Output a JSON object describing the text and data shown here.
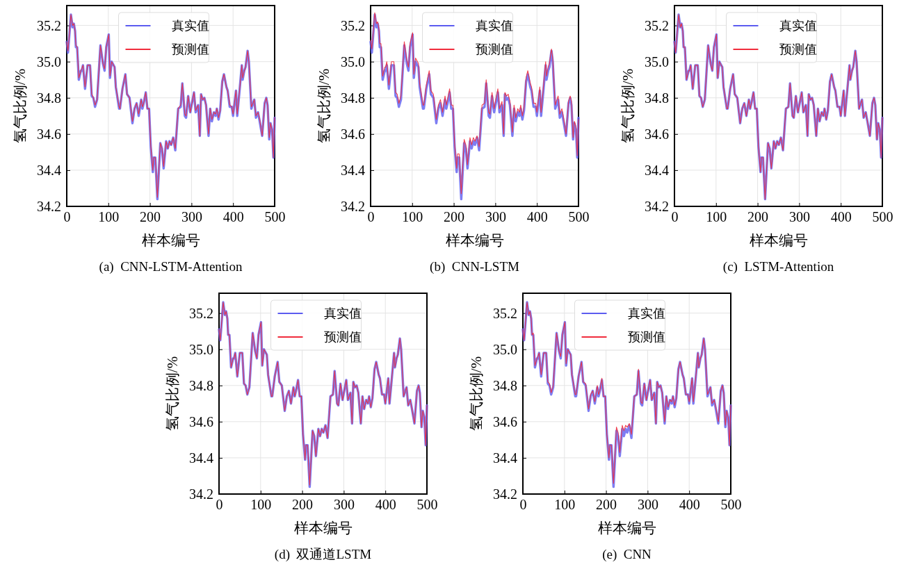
{
  "chart_data": [
    {
      "type": "line",
      "title": "(a)  CNN-LSTM-Attention",
      "xlabel": "样本编号",
      "ylabel": "氢气比例/%",
      "xlim": [
        0,
        500
      ],
      "xticks": [
        0,
        100,
        200,
        300,
        400,
        500
      ],
      "ylim": [
        34.2,
        35.31
      ],
      "yticks": [
        {
          "value": 34.2,
          "label": "34.2"
        },
        {
          "value": 34.4,
          "label": "34.4"
        },
        {
          "value": 34.6,
          "label": "34.6"
        },
        {
          "value": 34.8,
          "label": "34.8"
        },
        {
          "value": 35.0,
          "label": "35.0"
        },
        {
          "value": 35.2,
          "label": "35.2"
        }
      ],
      "grid": true,
      "legend": "top",
      "x": [
        0,
        3,
        10,
        14,
        17,
        20,
        22,
        25,
        29,
        34,
        36,
        39,
        44,
        50,
        56,
        60,
        64,
        68,
        73,
        81,
        87,
        91,
        95,
        101,
        104,
        108,
        115,
        118,
        126,
        128,
        134,
        141,
        145,
        151,
        158,
        163,
        168,
        173,
        179,
        182,
        185,
        190,
        194,
        198,
        202,
        207,
        209,
        213,
        218,
        225,
        229,
        233,
        239,
        243,
        247,
        251,
        256,
        261,
        268,
        274,
        278,
        284,
        287,
        292,
        297,
        306,
        310,
        316,
        320,
        323,
        327,
        331,
        335,
        341,
        345,
        349,
        354,
        358,
        361,
        365,
        369,
        374,
        378,
        384,
        387,
        392,
        397,
        400,
        407,
        410,
        416,
        421,
        423,
        427,
        430,
        435,
        438,
        444,
        448,
        451,
        455,
        460,
        464,
        470,
        476,
        480,
        483,
        487,
        490,
        494,
        497,
        500
      ],
      "series": [
        {
          "name": "真实值",
          "color": "#5c5cf0",
          "values": [
            35.11,
            35.05,
            35.26,
            35.19,
            35.21,
            35.17,
            35.08,
            35.08,
            34.9,
            34.95,
            34.95,
            34.98,
            34.85,
            34.98,
            34.98,
            34.81,
            34.8,
            34.75,
            34.79,
            35.09,
            34.99,
            34.95,
            35.08,
            35.15,
            34.91,
            35.0,
            34.97,
            34.86,
            34.74,
            34.74,
            34.85,
            34.93,
            34.82,
            34.8,
            34.66,
            34.74,
            34.77,
            34.7,
            34.79,
            34.74,
            34.77,
            34.83,
            34.74,
            34.74,
            34.53,
            34.39,
            34.47,
            34.47,
            34.24,
            34.55,
            34.52,
            34.41,
            34.56,
            34.52,
            34.56,
            34.54,
            34.58,
            34.51,
            34.74,
            34.75,
            34.88,
            34.7,
            34.69,
            34.81,
            34.72,
            34.83,
            34.72,
            34.76,
            34.59,
            34.82,
            34.79,
            34.8,
            34.76,
            34.59,
            34.74,
            34.67,
            34.72,
            34.7,
            34.74,
            34.68,
            34.73,
            34.89,
            34.93,
            34.86,
            34.84,
            34.75,
            34.75,
            34.7,
            34.84,
            34.7,
            34.85,
            34.98,
            34.9,
            34.95,
            34.97,
            35.06,
            35.0,
            34.74,
            34.77,
            34.79,
            34.69,
            34.72,
            34.67,
            34.59,
            34.77,
            34.8,
            34.76,
            34.57,
            34.66,
            34.62,
            34.47,
            34.69
          ]
        },
        {
          "name": "预测值",
          "color": "#f02c3c",
          "values": [
            35.11,
            35.06,
            35.26,
            35.2,
            35.21,
            35.17,
            35.09,
            35.08,
            34.91,
            34.95,
            34.96,
            34.98,
            34.86,
            34.98,
            34.98,
            34.82,
            34.8,
            34.76,
            34.79,
            35.09,
            34.99,
            34.96,
            35.08,
            35.15,
            34.92,
            35.0,
            34.97,
            34.86,
            34.75,
            34.74,
            34.85,
            34.93,
            34.82,
            34.8,
            34.67,
            34.74,
            34.77,
            34.71,
            34.79,
            34.75,
            34.77,
            34.83,
            34.74,
            34.74,
            34.54,
            34.4,
            34.47,
            34.47,
            34.25,
            34.55,
            34.52,
            34.42,
            34.56,
            34.52,
            34.56,
            34.54,
            34.58,
            34.52,
            34.74,
            34.76,
            34.88,
            34.71,
            34.7,
            34.81,
            34.72,
            34.83,
            34.73,
            34.76,
            34.59,
            34.82,
            34.79,
            34.8,
            34.76,
            34.6,
            34.74,
            34.68,
            34.72,
            34.71,
            34.74,
            34.69,
            34.73,
            34.89,
            34.93,
            34.86,
            34.84,
            34.76,
            34.75,
            34.71,
            34.84,
            34.71,
            34.85,
            34.98,
            34.91,
            34.95,
            34.97,
            35.06,
            35.0,
            34.75,
            34.77,
            34.79,
            34.7,
            34.72,
            34.68,
            34.59,
            34.77,
            34.8,
            34.76,
            34.58,
            34.66,
            34.62,
            34.47,
            34.69
          ]
        }
      ]
    },
    {
      "type": "line",
      "title": "(b)  CNN-LSTM",
      "xlabel": "样本编号",
      "ylabel": "氢气比例/%",
      "xlim": [
        0,
        500
      ],
      "xticks": [
        0,
        100,
        200,
        300,
        400,
        500
      ],
      "ylim": [
        34.2,
        35.31
      ],
      "yticks": [
        {
          "value": 34.2,
          "label": "34.2"
        },
        {
          "value": 34.4,
          "label": "34.4"
        },
        {
          "value": 34.6,
          "label": "34.6"
        },
        {
          "value": 34.8,
          "label": "34.8"
        },
        {
          "value": 35.0,
          "label": "35.0"
        },
        {
          "value": 35.2,
          "label": "35.2"
        }
      ],
      "grid": true,
      "legend": "top",
      "x": [
        0,
        3,
        10,
        14,
        17,
        20,
        22,
        25,
        29,
        34,
        36,
        39,
        44,
        50,
        56,
        60,
        64,
        68,
        73,
        81,
        87,
        91,
        95,
        101,
        104,
        108,
        115,
        118,
        126,
        128,
        134,
        141,
        145,
        151,
        158,
        163,
        168,
        173,
        179,
        182,
        185,
        190,
        194,
        198,
        202,
        207,
        209,
        213,
        218,
        225,
        229,
        233,
        239,
        243,
        247,
        251,
        256,
        261,
        268,
        274,
        278,
        284,
        287,
        292,
        297,
        306,
        310,
        316,
        320,
        323,
        327,
        331,
        335,
        341,
        345,
        349,
        354,
        358,
        361,
        365,
        369,
        374,
        378,
        384,
        387,
        392,
        397,
        400,
        407,
        410,
        416,
        421,
        423,
        427,
        430,
        435,
        438,
        444,
        448,
        451,
        455,
        460,
        464,
        470,
        476,
        480,
        483,
        487,
        490,
        494,
        497,
        500
      ],
      "series": [
        {
          "name": "真实值",
          "color": "#5c5cf0",
          "values": [
            35.11,
            35.05,
            35.26,
            35.19,
            35.21,
            35.17,
            35.08,
            35.08,
            34.9,
            34.95,
            34.95,
            34.98,
            34.85,
            34.98,
            34.98,
            34.81,
            34.8,
            34.75,
            34.79,
            35.09,
            34.99,
            34.95,
            35.08,
            35.15,
            34.91,
            35.0,
            34.97,
            34.86,
            34.74,
            34.74,
            34.85,
            34.93,
            34.82,
            34.8,
            34.66,
            34.74,
            34.77,
            34.7,
            34.79,
            34.74,
            34.77,
            34.83,
            34.74,
            34.74,
            34.53,
            34.39,
            34.47,
            34.47,
            34.24,
            34.55,
            34.52,
            34.41,
            34.56,
            34.52,
            34.56,
            34.54,
            34.58,
            34.51,
            34.74,
            34.75,
            34.88,
            34.7,
            34.69,
            34.81,
            34.72,
            34.83,
            34.72,
            34.76,
            34.59,
            34.82,
            34.79,
            34.8,
            34.76,
            34.59,
            34.74,
            34.67,
            34.72,
            34.7,
            34.74,
            34.68,
            34.73,
            34.89,
            34.93,
            34.86,
            34.84,
            34.75,
            34.75,
            34.7,
            34.84,
            34.7,
            34.85,
            34.98,
            34.9,
            34.95,
            34.97,
            35.06,
            35.0,
            34.74,
            34.77,
            34.79,
            34.69,
            34.72,
            34.67,
            34.59,
            34.77,
            34.8,
            34.76,
            34.57,
            34.66,
            34.62,
            34.47,
            34.69
          ]
        },
        {
          "name": "预测值",
          "color": "#f02c3c",
          "values": [
            35.12,
            35.07,
            35.27,
            35.21,
            35.22,
            35.18,
            35.1,
            35.1,
            34.92,
            34.97,
            34.97,
            35.0,
            34.87,
            35.0,
            35.0,
            34.83,
            34.82,
            34.77,
            34.81,
            35.11,
            35.01,
            34.97,
            35.1,
            35.16,
            34.93,
            35.02,
            34.99,
            34.88,
            34.76,
            34.76,
            34.87,
            34.95,
            34.84,
            34.82,
            34.68,
            34.76,
            34.79,
            34.72,
            34.81,
            34.76,
            34.79,
            34.85,
            34.76,
            34.76,
            34.55,
            34.41,
            34.49,
            34.49,
            34.27,
            34.57,
            34.54,
            34.43,
            34.58,
            34.54,
            34.58,
            34.56,
            34.59,
            34.53,
            34.76,
            34.77,
            34.9,
            34.72,
            34.71,
            34.83,
            34.74,
            34.85,
            34.74,
            34.78,
            34.6,
            34.83,
            34.81,
            34.82,
            34.78,
            34.61,
            34.76,
            34.69,
            34.74,
            34.72,
            34.76,
            34.7,
            34.75,
            34.91,
            34.95,
            34.88,
            34.86,
            34.77,
            34.77,
            34.72,
            34.86,
            34.72,
            34.87,
            35.0,
            34.92,
            34.97,
            34.99,
            35.07,
            35.02,
            34.76,
            34.79,
            34.81,
            34.71,
            34.74,
            34.69,
            34.6,
            34.78,
            34.81,
            34.78,
            34.58,
            34.67,
            34.64,
            34.48,
            34.68
          ]
        }
      ]
    },
    {
      "type": "line",
      "title": "(c)  LSTM-Attention",
      "xlabel": "样本编号",
      "ylabel": "氢气比例/%",
      "xlim": [
        0,
        500
      ],
      "xticks": [
        0,
        100,
        200,
        300,
        400,
        500
      ],
      "ylim": [
        34.2,
        35.31
      ],
      "yticks": [
        {
          "value": 34.2,
          "label": "34.2"
        },
        {
          "value": 34.4,
          "label": "34.4"
        },
        {
          "value": 34.6,
          "label": "34.6"
        },
        {
          "value": 34.8,
          "label": "34.8"
        },
        {
          "value": 35.0,
          "label": "35.0"
        },
        {
          "value": 35.2,
          "label": "35.2"
        }
      ],
      "grid": true,
      "legend": "top",
      "x": [
        0,
        3,
        10,
        14,
        17,
        20,
        22,
        25,
        29,
        34,
        36,
        39,
        44,
        50,
        56,
        60,
        64,
        68,
        73,
        81,
        87,
        91,
        95,
        101,
        104,
        108,
        115,
        118,
        126,
        128,
        134,
        141,
        145,
        151,
        158,
        163,
        168,
        173,
        179,
        182,
        185,
        190,
        194,
        198,
        202,
        207,
        209,
        213,
        218,
        225,
        229,
        233,
        239,
        243,
        247,
        251,
        256,
        261,
        268,
        274,
        278,
        284,
        287,
        292,
        297,
        306,
        310,
        316,
        320,
        323,
        327,
        331,
        335,
        341,
        345,
        349,
        354,
        358,
        361,
        365,
        369,
        374,
        378,
        384,
        387,
        392,
        397,
        400,
        407,
        410,
        416,
        421,
        423,
        427,
        430,
        435,
        438,
        444,
        448,
        451,
        455,
        460,
        464,
        470,
        476,
        480,
        483,
        487,
        490,
        494,
        497,
        500
      ],
      "series": [
        {
          "name": "真实值",
          "color": "#5c5cf0",
          "values": [
            35.11,
            35.05,
            35.26,
            35.19,
            35.21,
            35.17,
            35.08,
            35.08,
            34.9,
            34.95,
            34.95,
            34.98,
            34.85,
            34.98,
            34.98,
            34.81,
            34.8,
            34.75,
            34.79,
            35.09,
            34.99,
            34.95,
            35.08,
            35.15,
            34.91,
            35.0,
            34.97,
            34.86,
            34.74,
            34.74,
            34.85,
            34.93,
            34.82,
            34.8,
            34.66,
            34.74,
            34.77,
            34.7,
            34.79,
            34.74,
            34.77,
            34.83,
            34.74,
            34.74,
            34.53,
            34.39,
            34.47,
            34.47,
            34.24,
            34.55,
            34.52,
            34.41,
            34.56,
            34.52,
            34.56,
            34.54,
            34.58,
            34.51,
            34.74,
            34.75,
            34.88,
            34.7,
            34.69,
            34.81,
            34.72,
            34.83,
            34.72,
            34.76,
            34.59,
            34.82,
            34.79,
            34.8,
            34.76,
            34.59,
            34.74,
            34.67,
            34.72,
            34.7,
            34.74,
            34.68,
            34.73,
            34.89,
            34.93,
            34.86,
            34.84,
            34.75,
            34.75,
            34.7,
            34.84,
            34.7,
            34.85,
            34.98,
            34.9,
            34.95,
            34.97,
            35.06,
            35.0,
            34.74,
            34.77,
            34.79,
            34.69,
            34.72,
            34.67,
            34.59,
            34.77,
            34.8,
            34.76,
            34.57,
            34.66,
            34.62,
            34.47,
            34.69
          ]
        },
        {
          "name": "预测值",
          "color": "#f02c3c",
          "values": [
            35.11,
            35.05,
            35.26,
            35.19,
            35.21,
            35.17,
            35.08,
            35.08,
            34.9,
            34.95,
            34.95,
            34.98,
            34.85,
            34.98,
            34.98,
            34.81,
            34.8,
            34.75,
            34.79,
            35.09,
            34.99,
            34.95,
            35.08,
            35.15,
            34.91,
            35.0,
            34.97,
            34.86,
            34.74,
            34.74,
            34.85,
            34.93,
            34.82,
            34.8,
            34.66,
            34.74,
            34.77,
            34.7,
            34.79,
            34.74,
            34.77,
            34.83,
            34.74,
            34.74,
            34.53,
            34.39,
            34.47,
            34.47,
            34.24,
            34.55,
            34.52,
            34.41,
            34.56,
            34.52,
            34.56,
            34.54,
            34.58,
            34.51,
            34.74,
            34.75,
            34.88,
            34.7,
            34.69,
            34.81,
            34.72,
            34.83,
            34.72,
            34.76,
            34.59,
            34.82,
            34.79,
            34.8,
            34.76,
            34.59,
            34.74,
            34.67,
            34.72,
            34.7,
            34.74,
            34.68,
            34.73,
            34.89,
            34.93,
            34.86,
            34.84,
            34.75,
            34.75,
            34.7,
            34.84,
            34.7,
            34.85,
            34.98,
            34.9,
            34.95,
            34.97,
            35.06,
            35.0,
            34.74,
            34.77,
            34.79,
            34.69,
            34.72,
            34.67,
            34.59,
            34.77,
            34.8,
            34.76,
            34.57,
            34.66,
            34.62,
            34.47,
            34.69
          ]
        }
      ]
    },
    {
      "type": "line",
      "title": "(d)  双通道LSTM",
      "xlabel": "样本编号",
      "ylabel": "氢气比例/%",
      "xlim": [
        0,
        500
      ],
      "xticks": [
        0,
        100,
        200,
        300,
        400,
        500
      ],
      "ylim": [
        34.2,
        35.31
      ],
      "yticks": [
        {
          "value": 34.2,
          "label": "34.2"
        },
        {
          "value": 34.4,
          "label": "34.4"
        },
        {
          "value": 34.6,
          "label": "34.6"
        },
        {
          "value": 34.8,
          "label": "34.8"
        },
        {
          "value": 35.0,
          "label": "35.0"
        },
        {
          "value": 35.2,
          "label": "35.2"
        }
      ],
      "grid": true,
      "legend": "top",
      "x": [
        0,
        3,
        10,
        14,
        17,
        20,
        22,
        25,
        29,
        34,
        36,
        39,
        44,
        50,
        56,
        60,
        64,
        68,
        73,
        81,
        87,
        91,
        95,
        101,
        104,
        108,
        115,
        118,
        126,
        128,
        134,
        141,
        145,
        151,
        158,
        163,
        168,
        173,
        179,
        182,
        185,
        190,
        194,
        198,
        202,
        207,
        209,
        213,
        218,
        225,
        229,
        233,
        239,
        243,
        247,
        251,
        256,
        261,
        268,
        274,
        278,
        284,
        287,
        292,
        297,
        306,
        310,
        316,
        320,
        323,
        327,
        331,
        335,
        341,
        345,
        349,
        354,
        358,
        361,
        365,
        369,
        374,
        378,
        384,
        387,
        392,
        397,
        400,
        407,
        410,
        416,
        421,
        423,
        427,
        430,
        435,
        438,
        444,
        448,
        451,
        455,
        460,
        464,
        470,
        476,
        480,
        483,
        487,
        490,
        494,
        497,
        500
      ],
      "series": [
        {
          "name": "真实值",
          "color": "#5c5cf0",
          "values": [
            35.11,
            35.05,
            35.26,
            35.19,
            35.21,
            35.17,
            35.08,
            35.08,
            34.9,
            34.95,
            34.95,
            34.98,
            34.85,
            34.98,
            34.98,
            34.81,
            34.8,
            34.75,
            34.79,
            35.09,
            34.99,
            34.95,
            35.08,
            35.15,
            34.91,
            35.0,
            34.97,
            34.86,
            34.74,
            34.74,
            34.85,
            34.93,
            34.82,
            34.8,
            34.66,
            34.74,
            34.77,
            34.7,
            34.79,
            34.74,
            34.77,
            34.83,
            34.74,
            34.74,
            34.53,
            34.39,
            34.47,
            34.47,
            34.24,
            34.55,
            34.52,
            34.41,
            34.56,
            34.52,
            34.56,
            34.54,
            34.58,
            34.51,
            34.74,
            34.75,
            34.88,
            34.7,
            34.69,
            34.81,
            34.72,
            34.83,
            34.72,
            34.76,
            34.59,
            34.82,
            34.79,
            34.8,
            34.76,
            34.59,
            34.74,
            34.67,
            34.72,
            34.7,
            34.74,
            34.68,
            34.73,
            34.89,
            34.93,
            34.86,
            34.84,
            34.75,
            34.75,
            34.7,
            34.84,
            34.7,
            34.85,
            34.98,
            34.9,
            34.95,
            34.97,
            35.06,
            35.0,
            34.74,
            34.77,
            34.79,
            34.69,
            34.72,
            34.67,
            34.59,
            34.77,
            34.8,
            34.76,
            34.57,
            34.66,
            34.62,
            34.47,
            34.69
          ]
        },
        {
          "name": "预测值",
          "color": "#f02c3c",
          "values": [
            35.11,
            35.05,
            35.26,
            35.19,
            35.21,
            35.17,
            35.08,
            35.08,
            34.9,
            34.95,
            34.95,
            34.98,
            34.85,
            34.98,
            34.98,
            34.81,
            34.8,
            34.75,
            34.79,
            35.09,
            34.99,
            34.95,
            35.08,
            35.15,
            34.91,
            35.0,
            34.97,
            34.86,
            34.74,
            34.74,
            34.85,
            34.93,
            34.82,
            34.8,
            34.66,
            34.74,
            34.77,
            34.7,
            34.79,
            34.74,
            34.77,
            34.83,
            34.74,
            34.74,
            34.53,
            34.39,
            34.47,
            34.47,
            34.25,
            34.55,
            34.52,
            34.41,
            34.56,
            34.52,
            34.56,
            34.54,
            34.58,
            34.51,
            34.74,
            34.75,
            34.88,
            34.7,
            34.69,
            34.81,
            34.72,
            34.83,
            34.72,
            34.76,
            34.59,
            34.82,
            34.79,
            34.8,
            34.76,
            34.59,
            34.74,
            34.67,
            34.72,
            34.7,
            34.74,
            34.68,
            34.73,
            34.89,
            34.93,
            34.86,
            34.84,
            34.75,
            34.75,
            34.7,
            34.84,
            34.7,
            34.85,
            34.98,
            34.9,
            34.95,
            34.97,
            35.06,
            35.0,
            34.74,
            34.77,
            34.79,
            34.69,
            34.72,
            34.67,
            34.59,
            34.77,
            34.8,
            34.76,
            34.57,
            34.66,
            34.62,
            34.47,
            34.69
          ]
        }
      ]
    },
    {
      "type": "line",
      "title": "(e)  CNN",
      "xlabel": "样本编号",
      "ylabel": "氢气比例/%",
      "xlim": [
        0,
        500
      ],
      "xticks": [
        0,
        100,
        200,
        300,
        400,
        500
      ],
      "ylim": [
        34.2,
        35.31
      ],
      "yticks": [
        {
          "value": 34.2,
          "label": "34.2"
        },
        {
          "value": 34.4,
          "label": "34.4"
        },
        {
          "value": 34.6,
          "label": "34.6"
        },
        {
          "value": 34.8,
          "label": "34.8"
        },
        {
          "value": 35.0,
          "label": "35.0"
        },
        {
          "value": 35.2,
          "label": "35.2"
        }
      ],
      "grid": true,
      "legend": "top",
      "x": [
        0,
        3,
        10,
        14,
        17,
        20,
        22,
        25,
        29,
        34,
        36,
        39,
        44,
        50,
        56,
        60,
        64,
        68,
        73,
        81,
        87,
        91,
        95,
        101,
        104,
        108,
        115,
        118,
        126,
        128,
        134,
        141,
        145,
        151,
        158,
        163,
        168,
        173,
        179,
        182,
        185,
        190,
        194,
        198,
        202,
        207,
        209,
        213,
        218,
        225,
        229,
        233,
        239,
        243,
        247,
        251,
        256,
        261,
        268,
        274,
        278,
        284,
        287,
        292,
        297,
        306,
        310,
        316,
        320,
        323,
        327,
        331,
        335,
        341,
        345,
        349,
        354,
        358,
        361,
        365,
        369,
        374,
        378,
        384,
        387,
        392,
        397,
        400,
        407,
        410,
        416,
        421,
        423,
        427,
        430,
        435,
        438,
        444,
        448,
        451,
        455,
        460,
        464,
        470,
        476,
        480,
        483,
        487,
        490,
        494,
        497,
        500
      ],
      "series": [
        {
          "name": "真实值",
          "color": "#5c5cf0",
          "values": [
            35.11,
            35.05,
            35.26,
            35.19,
            35.21,
            35.17,
            35.08,
            35.08,
            34.9,
            34.95,
            34.95,
            34.98,
            34.85,
            34.98,
            34.98,
            34.81,
            34.8,
            34.75,
            34.79,
            35.09,
            34.99,
            34.95,
            35.08,
            35.15,
            34.91,
            35.0,
            34.97,
            34.86,
            34.74,
            34.74,
            34.85,
            34.93,
            34.82,
            34.8,
            34.66,
            34.74,
            34.77,
            34.7,
            34.79,
            34.74,
            34.77,
            34.83,
            34.74,
            34.74,
            34.53,
            34.39,
            34.47,
            34.47,
            34.24,
            34.55,
            34.52,
            34.41,
            34.56,
            34.52,
            34.56,
            34.54,
            34.58,
            34.51,
            34.74,
            34.75,
            34.88,
            34.7,
            34.69,
            34.81,
            34.72,
            34.83,
            34.72,
            34.76,
            34.59,
            34.82,
            34.79,
            34.8,
            34.76,
            34.59,
            34.74,
            34.67,
            34.72,
            34.7,
            34.74,
            34.68,
            34.73,
            34.89,
            34.93,
            34.86,
            34.84,
            34.75,
            34.75,
            34.7,
            34.84,
            34.7,
            34.85,
            34.98,
            34.9,
            34.95,
            34.97,
            35.06,
            35.0,
            34.74,
            34.77,
            34.79,
            34.69,
            34.72,
            34.67,
            34.59,
            34.77,
            34.8,
            34.76,
            34.57,
            34.66,
            34.62,
            34.47,
            34.69
          ]
        },
        {
          "name": "预测值",
          "color": "#f02c3c",
          "values": [
            35.11,
            35.05,
            35.26,
            35.19,
            35.21,
            35.17,
            35.08,
            35.09,
            34.91,
            34.95,
            34.96,
            34.98,
            34.86,
            34.98,
            34.98,
            34.82,
            34.81,
            34.76,
            34.8,
            35.09,
            34.99,
            34.96,
            35.08,
            35.15,
            34.92,
            35.0,
            34.97,
            34.86,
            34.75,
            34.75,
            34.85,
            34.93,
            34.82,
            34.81,
            34.67,
            34.75,
            34.77,
            34.71,
            34.8,
            34.75,
            34.77,
            34.84,
            34.74,
            34.74,
            34.53,
            34.4,
            34.47,
            34.47,
            34.26,
            34.57,
            34.54,
            34.43,
            34.58,
            34.55,
            34.58,
            34.57,
            34.59,
            34.53,
            34.74,
            34.75,
            34.89,
            34.71,
            34.7,
            34.81,
            34.72,
            34.83,
            34.72,
            34.76,
            34.59,
            34.82,
            34.79,
            34.8,
            34.76,
            34.6,
            34.74,
            34.68,
            34.72,
            34.71,
            34.74,
            34.69,
            34.73,
            34.89,
            34.93,
            34.86,
            34.84,
            34.75,
            34.75,
            34.71,
            34.84,
            34.71,
            34.85,
            34.98,
            34.9,
            34.95,
            34.97,
            35.06,
            35.0,
            34.75,
            34.77,
            34.79,
            34.7,
            34.72,
            34.68,
            34.6,
            34.77,
            34.8,
            34.76,
            34.58,
            34.66,
            34.62,
            34.47,
            34.69
          ]
        }
      ]
    }
  ]
}
